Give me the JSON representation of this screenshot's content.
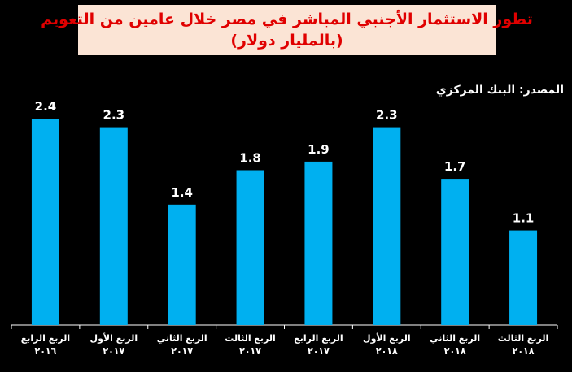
{
  "chart_data": {
    "type": "bar",
    "title_lines": [
      "تطور الاستثمار الأجنبي المباشر في مصر خلال عامين من التعويم",
      "(بالمليار دولار)"
    ],
    "source": "المصدر: البنك المركزي",
    "categories": [
      [
        "الربع الرابع",
        "٢٠١٦"
      ],
      [
        "الربع الأول",
        "٢٠١٧"
      ],
      [
        "الربع الثاني",
        "٢٠١٧"
      ],
      [
        "الربع الثالث",
        "٢٠١٧"
      ],
      [
        "الربع الرابع",
        "٢٠١٧"
      ],
      [
        "الربع الأول",
        "٢٠١٨"
      ],
      [
        "الربع الثاني",
        "٢٠١٨"
      ],
      [
        "الربع الثالث",
        "٢٠١٨"
      ]
    ],
    "values": [
      2.4,
      2.3,
      1.4,
      1.8,
      1.9,
      2.3,
      1.7,
      1.1
    ],
    "value_labels": [
      "2.4",
      "2.3",
      "1.4",
      "1.8",
      "1.9",
      "2.3",
      "1.7",
      "1.1"
    ],
    "ylim": [
      0,
      2.4
    ],
    "grid": false,
    "colors": {
      "bar": "#00b0f0",
      "background": "#000000",
      "title_bg": "#fbe4d5",
      "title_text": "#e00000",
      "text": "#ffffff",
      "axis": "#ffffff"
    }
  }
}
